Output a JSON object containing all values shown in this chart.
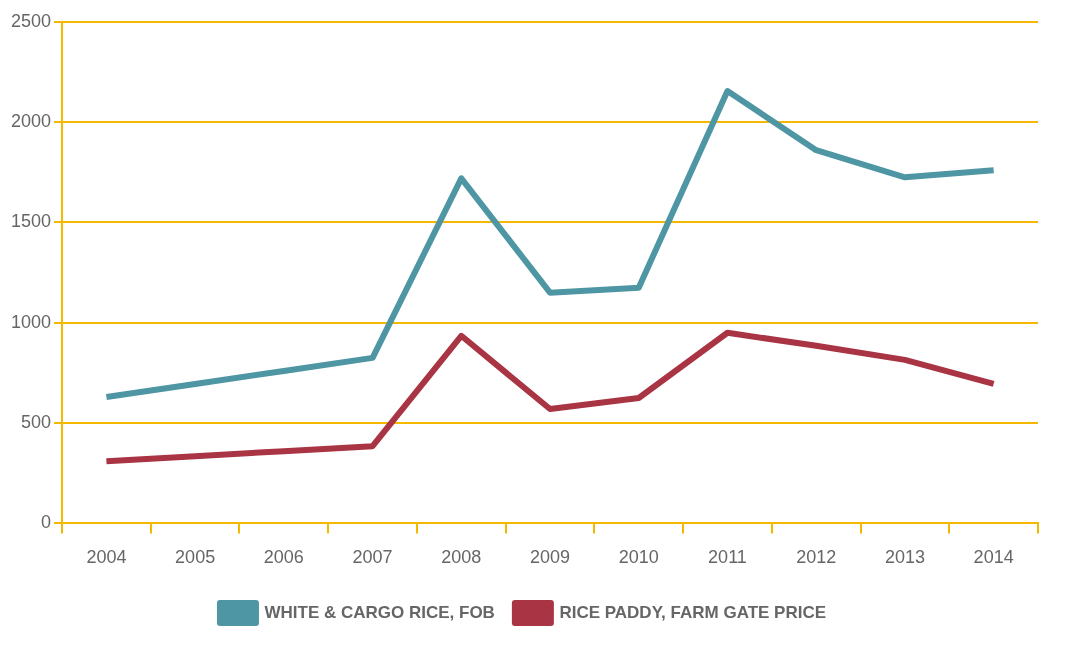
{
  "chart_data": {
    "type": "line",
    "categories": [
      "2004",
      "2005",
      "2006",
      "2007",
      "2008",
      "2009",
      "2010",
      "2011",
      "2012",
      "2013",
      "2014"
    ],
    "series": [
      {
        "name": "WHITE & CARGO RICE, FOB",
        "color": "#4e96a3",
        "values": [
          630,
          695,
          760,
          825,
          1720,
          1150,
          1175,
          2155,
          1860,
          1725,
          1760
        ]
      },
      {
        "name": "RICE PADDY, FARM GATE PRICE",
        "color": "#a93443",
        "values": [
          310,
          335,
          360,
          385,
          935,
          570,
          625,
          950,
          885,
          815,
          695
        ]
      }
    ],
    "ylim": [
      0,
      2500
    ],
    "yticks": [
      0,
      500,
      1000,
      1500,
      2000,
      2500
    ],
    "grid": "y",
    "legend": "bottom",
    "marker": "none",
    "line_style": "solid"
  }
}
